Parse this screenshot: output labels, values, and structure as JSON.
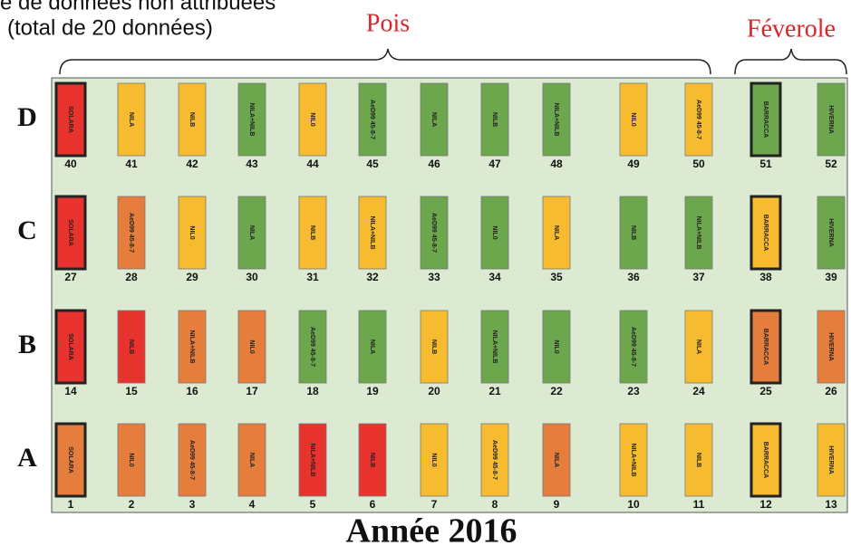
{
  "header": {
    "note_line1": "e de données non attribuées",
    "note_line2": "(total de 20 données)"
  },
  "groups": [
    {
      "label": "Pois"
    },
    {
      "label": "Féverole"
    }
  ],
  "colors": {
    "red": "#e8322d",
    "orange": "#e57d3d",
    "yellow": "#f6bb2f",
    "green": "#6ca64d"
  },
  "rows": [
    {
      "label": "D",
      "plots": [
        {
          "number": 40,
          "label": "SOLARA",
          "color": "red",
          "outlined": true
        },
        {
          "number": 41,
          "label": "NILA",
          "color": "yellow"
        },
        {
          "number": 42,
          "label": "NILB",
          "color": "yellow"
        },
        {
          "number": 43,
          "label": "NILA+NILB",
          "color": "green"
        },
        {
          "number": 44,
          "label": "NIL0",
          "color": "yellow"
        },
        {
          "number": 45,
          "label": "AeD99 45-8-7",
          "color": "green"
        },
        {
          "number": 46,
          "label": "NILA",
          "color": "green"
        },
        {
          "number": 47,
          "label": "NILB",
          "color": "green"
        },
        {
          "number": 48,
          "label": "NILA+NILB",
          "color": "green"
        },
        {
          "number": 49,
          "label": "NIL0",
          "color": "yellow"
        },
        {
          "number": 50,
          "label": "AeD99 45-8-7",
          "color": "yellow"
        },
        {
          "number": 51,
          "label": "BARRACCA",
          "color": "green",
          "outlined": true
        },
        {
          "number": 52,
          "label": "HIVERNA",
          "color": "green"
        }
      ]
    },
    {
      "label": "C",
      "plots": [
        {
          "number": 27,
          "label": "SOLARA",
          "color": "red",
          "outlined": true
        },
        {
          "number": 28,
          "label": "AeD99 45-8-7",
          "color": "orange"
        },
        {
          "number": 29,
          "label": "NIL0",
          "color": "yellow"
        },
        {
          "number": 30,
          "label": "NILA",
          "color": "green"
        },
        {
          "number": 31,
          "label": "NILB",
          "color": "yellow"
        },
        {
          "number": 32,
          "label": "NILA+NILB",
          "color": "yellow"
        },
        {
          "number": 33,
          "label": "AeD99 45-8-7",
          "color": "green"
        },
        {
          "number": 34,
          "label": "NIL0",
          "color": "green"
        },
        {
          "number": 35,
          "label": "NILA",
          "color": "yellow"
        },
        {
          "number": 36,
          "label": "NILB",
          "color": "green"
        },
        {
          "number": 37,
          "label": "NILA+NILB",
          "color": "green"
        },
        {
          "number": 38,
          "label": "BARRACCA",
          "color": "yellow",
          "outlined": true
        },
        {
          "number": 39,
          "label": "HIVERNA",
          "color": "green"
        }
      ]
    },
    {
      "label": "B",
      "plots": [
        {
          "number": 14,
          "label": "SOLARA",
          "color": "red",
          "outlined": true
        },
        {
          "number": 15,
          "label": "NILB",
          "color": "red"
        },
        {
          "number": 16,
          "label": "NILA+NILB",
          "color": "orange"
        },
        {
          "number": 17,
          "label": "NIL0",
          "color": "orange"
        },
        {
          "number": 18,
          "label": "AeD99 45-8-7",
          "color": "green"
        },
        {
          "number": 19,
          "label": "NILA",
          "color": "green"
        },
        {
          "number": 20,
          "label": "NILB",
          "color": "yellow"
        },
        {
          "number": 21,
          "label": "NILA+NILB",
          "color": "green"
        },
        {
          "number": 22,
          "label": "NIL0",
          "color": "green"
        },
        {
          "number": 23,
          "label": "AeD99 45-8-7",
          "color": "green"
        },
        {
          "number": 24,
          "label": "NILA",
          "color": "yellow"
        },
        {
          "number": 25,
          "label": "BARRACCA",
          "color": "orange",
          "outlined": true
        },
        {
          "number": 26,
          "label": "HIVERNA",
          "color": "orange"
        }
      ]
    },
    {
      "label": "A",
      "plots": [
        {
          "number": 1,
          "label": "SOLARA",
          "color": "orange",
          "outlined": true
        },
        {
          "number": 2,
          "label": "NIL0",
          "color": "orange"
        },
        {
          "number": 3,
          "label": "AeD99 45-8-7",
          "color": "orange"
        },
        {
          "number": 4,
          "label": "NILA",
          "color": "orange"
        },
        {
          "number": 5,
          "label": "NILA+NILB",
          "color": "red"
        },
        {
          "number": 6,
          "label": "NILB",
          "color": "red"
        },
        {
          "number": 7,
          "label": "NIL0",
          "color": "yellow"
        },
        {
          "number": 8,
          "label": "AeD99 45-8-7",
          "color": "yellow"
        },
        {
          "number": 9,
          "label": "NILA",
          "color": "orange"
        },
        {
          "number": 10,
          "label": "NILA+NILB",
          "color": "yellow"
        },
        {
          "number": 11,
          "label": "NILB",
          "color": "yellow"
        },
        {
          "number": 12,
          "label": "BARRACCA",
          "color": "yellow",
          "outlined": true
        },
        {
          "number": 13,
          "label": "HIVERNA",
          "color": "yellow"
        }
      ]
    }
  ],
  "footer": "Année 2016"
}
